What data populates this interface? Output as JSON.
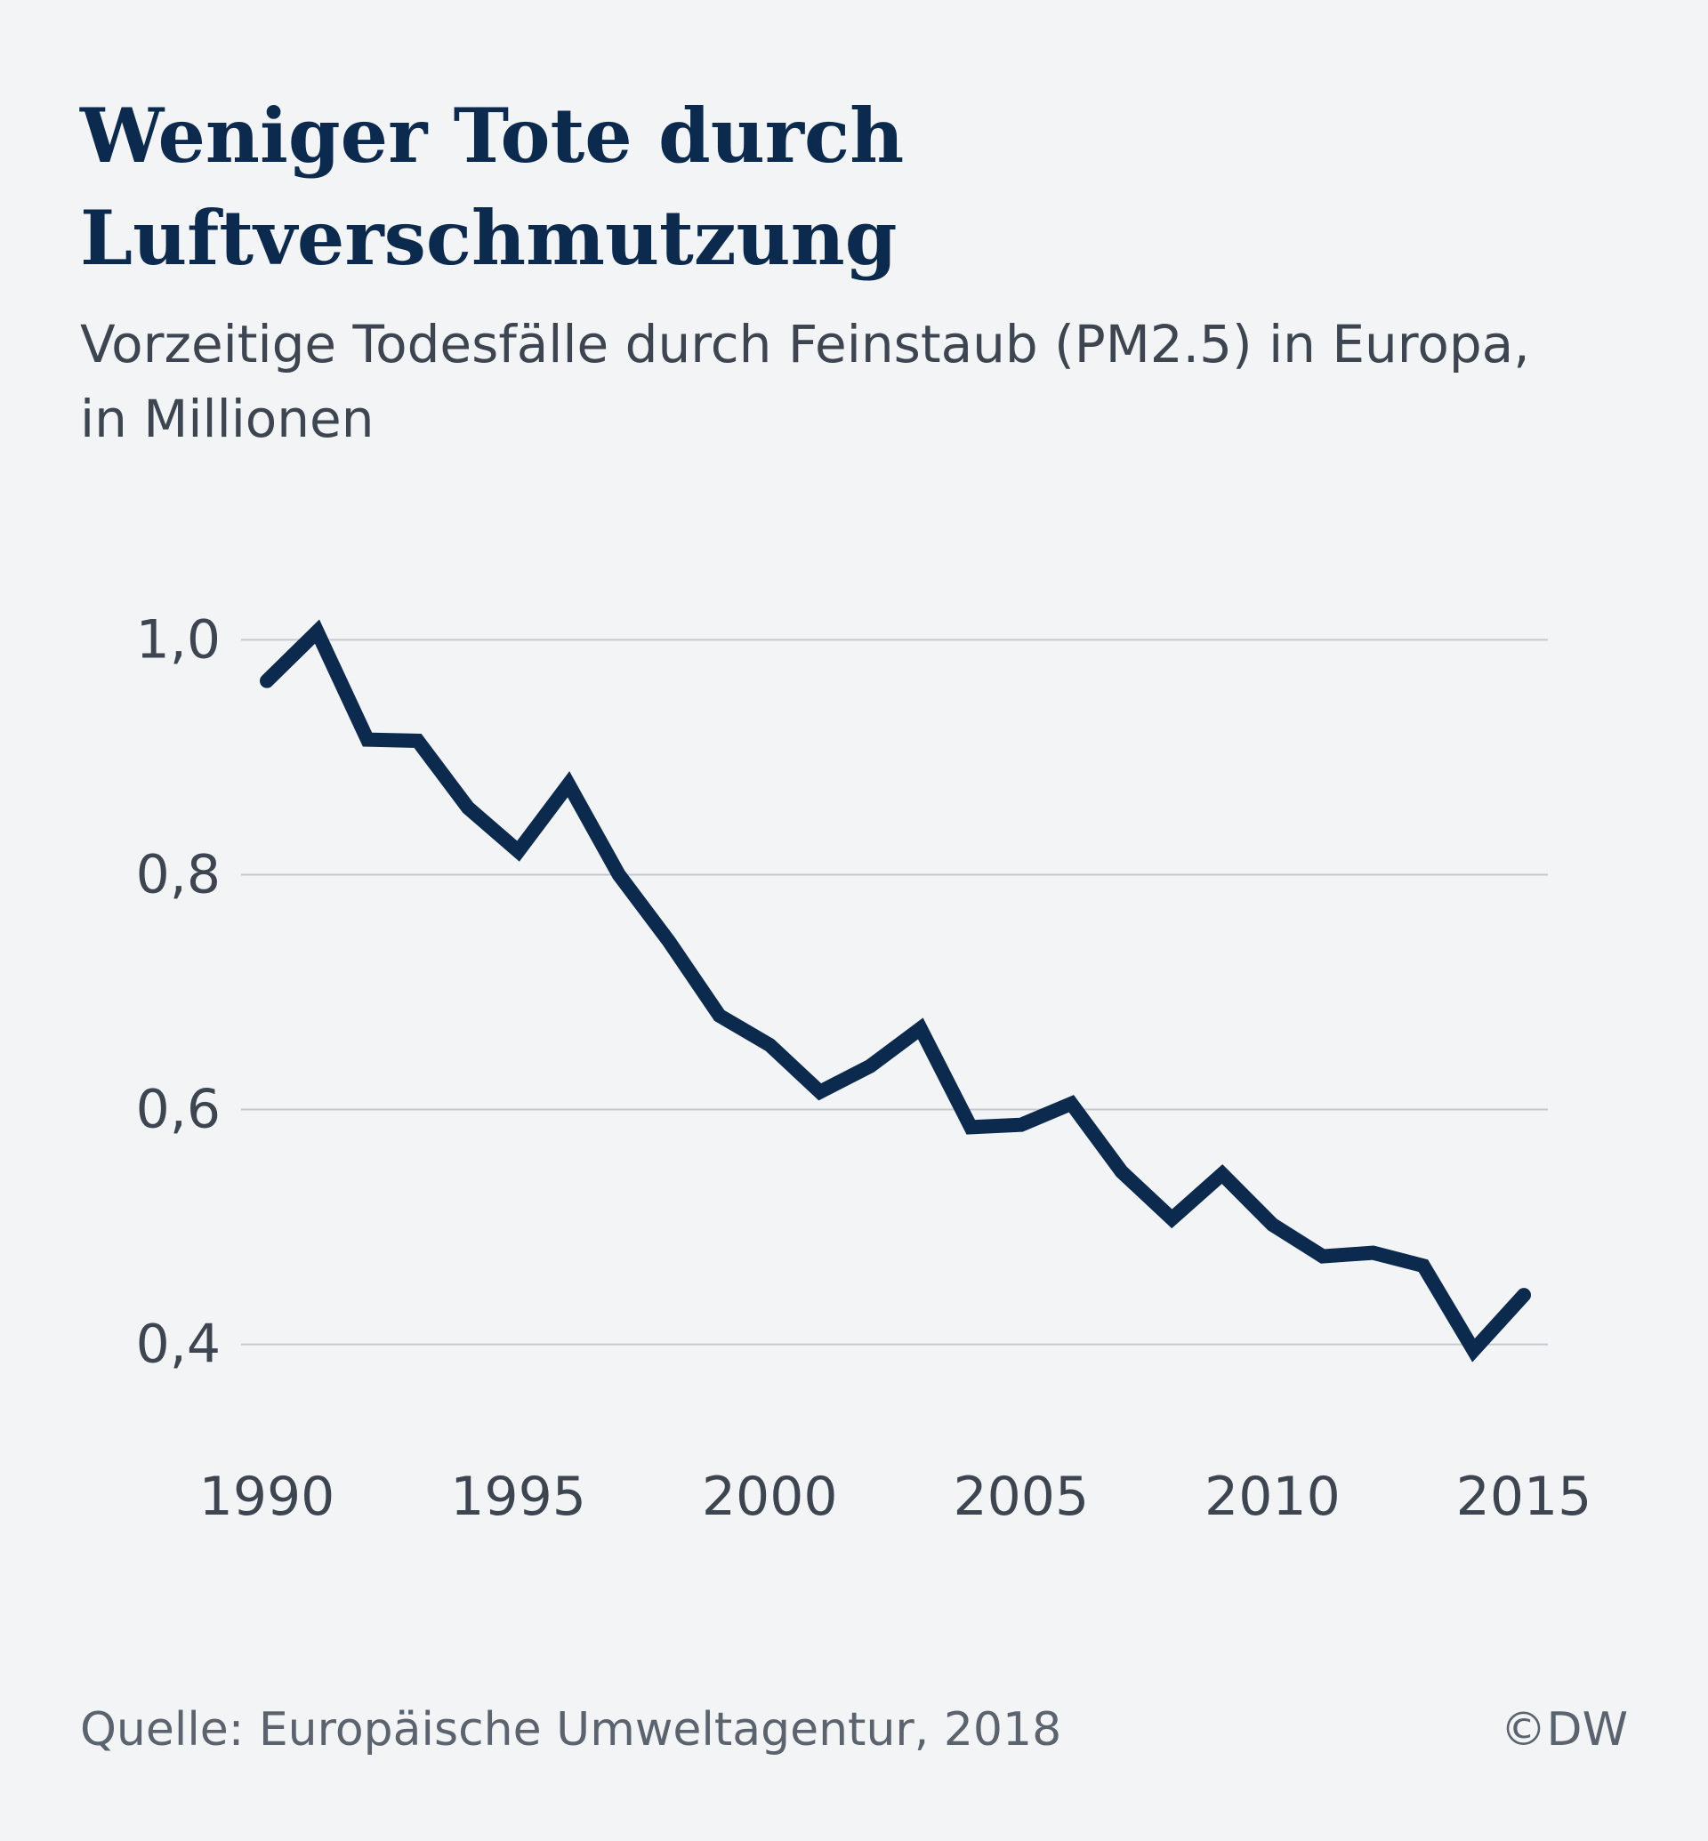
{
  "chart_data": {
    "type": "line",
    "title": "Weniger Tote durch Luftverschmutzung",
    "subtitle": "Vorzeitige Todesfälle durch Feinstaub (PM2.5) in Europa, in Millionen",
    "source": "Quelle: Europäische Umweltagentur, 2018",
    "credit": "©DW",
    "x": [
      1990,
      1991,
      1992,
      1993,
      1994,
      1995,
      1996,
      1997,
      1998,
      1999,
      2000,
      2001,
      2002,
      2003,
      2004,
      2005,
      2006,
      2007,
      2008,
      2009,
      2010,
      2011,
      2012,
      2013,
      2014,
      2015
    ],
    "series": [
      {
        "color": "#0c2a4d",
        "values": [
          0.965,
          1.007,
          0.915,
          0.914,
          0.857,
          0.82,
          0.877,
          0.8,
          0.743,
          0.68,
          0.655,
          0.615,
          0.637,
          0.669,
          0.585,
          0.587,
          0.605,
          0.547,
          0.507,
          0.545,
          0.502,
          0.475,
          0.478,
          0.467,
          0.395,
          0.442
        ]
      }
    ],
    "xlim": [
      1990,
      2015
    ],
    "xticks": [
      1990,
      1995,
      2000,
      2005,
      2010,
      2015
    ],
    "ylim": [
      0.38,
      1.02
    ],
    "yticks": [
      {
        "value": 0.4,
        "label": "0,4"
      },
      {
        "value": 0.6,
        "label": "0,6"
      },
      {
        "value": 0.8,
        "label": "0,8"
      },
      {
        "value": 1,
        "label": "1,0"
      }
    ],
    "grid": true
  }
}
